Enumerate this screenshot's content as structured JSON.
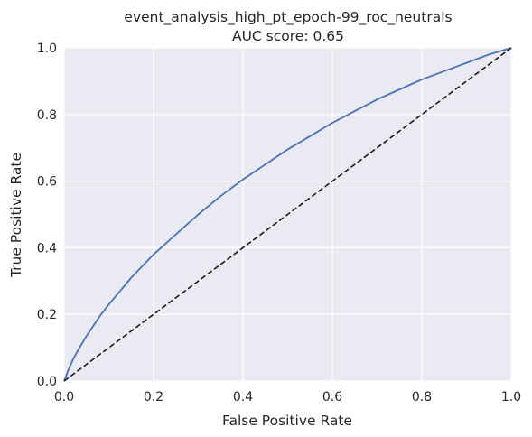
{
  "chart_data": {
    "type": "line",
    "title": "event_analysis_high_pt_epoch-99_roc_neutrals",
    "subtitle": "AUC score: 0.65",
    "xlabel": "False Positive Rate",
    "ylabel": "True Positive Rate",
    "xlim": [
      0.0,
      1.0
    ],
    "ylim": [
      0.0,
      1.0
    ],
    "xticks": [
      "0.0",
      "0.2",
      "0.4",
      "0.6",
      "0.8",
      "1.0"
    ],
    "yticks": [
      "0.0",
      "0.2",
      "0.4",
      "0.6",
      "0.8",
      "1.0"
    ],
    "grid": true,
    "colors": {
      "background": "#eaeaf2",
      "grid": "#ffffff",
      "roc": "#4c72b0",
      "diagonal": "#1a1a1a"
    },
    "series": [
      {
        "style": "solid",
        "x": [
          0.0,
          0.01,
          0.02,
          0.03,
          0.05,
          0.08,
          0.1,
          0.15,
          0.2,
          0.25,
          0.3,
          0.35,
          0.4,
          0.45,
          0.5,
          0.55,
          0.6,
          0.65,
          0.7,
          0.75,
          0.8,
          0.85,
          0.9,
          0.95,
          1.0
        ],
        "y": [
          0.0,
          0.035,
          0.065,
          0.09,
          0.135,
          0.195,
          0.23,
          0.31,
          0.38,
          0.44,
          0.5,
          0.555,
          0.605,
          0.65,
          0.695,
          0.735,
          0.775,
          0.81,
          0.845,
          0.875,
          0.905,
          0.93,
          0.955,
          0.98,
          1.0
        ]
      },
      {
        "style": "dashed",
        "x": [
          0.0,
          1.0
        ],
        "y": [
          0.0,
          1.0
        ]
      }
    ]
  }
}
